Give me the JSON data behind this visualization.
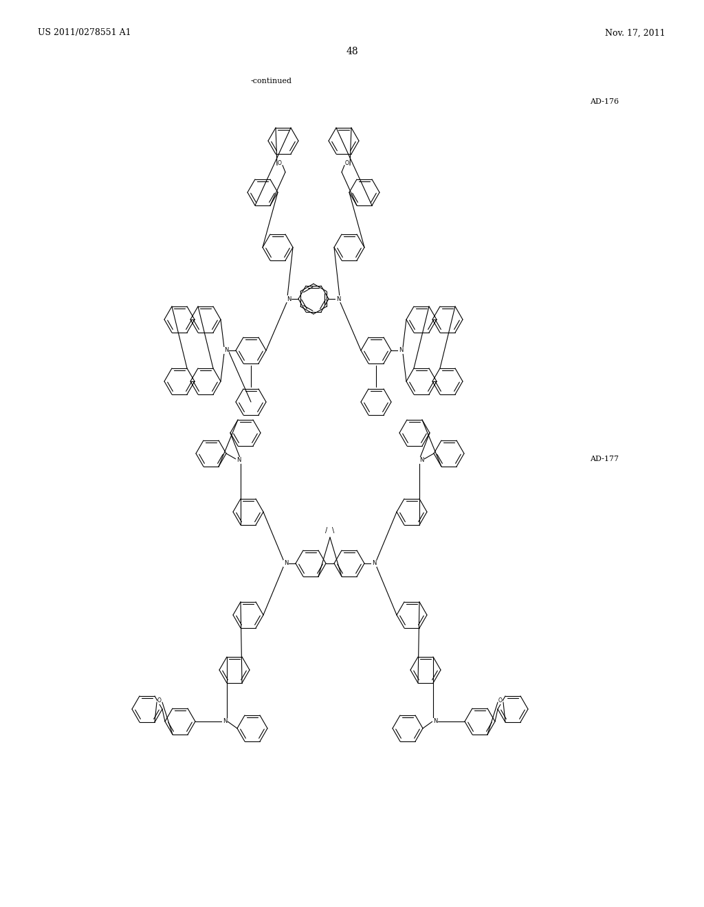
{
  "page_header_left": "US 2011/0278551 A1",
  "page_header_right": "Nov. 17, 2011",
  "page_number": "48",
  "continued_label": "-continued",
  "compound1_label": "AD-176",
  "compound2_label": "AD-177",
  "background_color": "#ffffff",
  "line_color": "#000000",
  "text_color": "#000000",
  "font_size_header": 9,
  "font_size_label": 8,
  "font_size_page": 10,
  "font_size_continued": 8
}
